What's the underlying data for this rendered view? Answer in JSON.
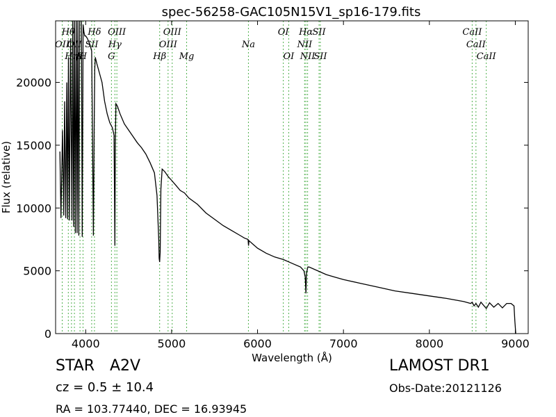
{
  "chart_data": {
    "type": "line",
    "title": "spec-56258-GAC105N15V1_sp16-179.fits",
    "xlabel": "Wavelength (Å)",
    "ylabel": "Flux (relative)",
    "xlim": [
      3650,
      9150
    ],
    "ylim": [
      0,
      24900
    ],
    "xticks": [
      4000,
      5000,
      6000,
      7000,
      8000,
      9000
    ],
    "yticks": [
      0,
      5000,
      10000,
      15000,
      20000
    ],
    "grid": false,
    "series": [
      {
        "x": [
          3700,
          3712,
          3722,
          3730,
          3745,
          3755,
          3768,
          3780,
          3790,
          3800,
          3810,
          3825,
          3840,
          3850,
          3860,
          3870,
          3880,
          3890,
          3900,
          3910,
          3920,
          3930,
          3940,
          3950,
          3960,
          3970,
          3980,
          3990,
          4000,
          4010,
          4020,
          4050,
          4070,
          4090,
          4100,
          4105,
          4112,
          4130,
          4150,
          4170,
          4190,
          4220,
          4250,
          4280,
          4310,
          4330,
          4340,
          4345,
          4352,
          4370,
          4400,
          4450,
          4500,
          4550,
          4600,
          4650,
          4700,
          4750,
          4800,
          4830,
          4850,
          4855,
          4861,
          4867,
          4875,
          4890,
          4920,
          4960,
          5000,
          5050,
          5100,
          5150,
          5200,
          5300,
          5400,
          5500,
          5600,
          5700,
          5800,
          5850,
          5890,
          5895,
          5900,
          5950,
          6000,
          6100,
          6200,
          6300,
          6400,
          6500,
          6540,
          6555,
          6563,
          6570,
          6585,
          6600,
          6700,
          6800,
          6900,
          7000,
          7200,
          7400,
          7600,
          7800,
          8000,
          8200,
          8400,
          8480,
          8498,
          8520,
          8542,
          8570,
          8600,
          8662,
          8700,
          8750,
          8800,
          8850,
          8900,
          8950,
          8985,
          8995,
          9005
        ],
        "y": [
          14500,
          9200,
          13000,
          16200,
          9400,
          18500,
          9200,
          20000,
          9100,
          22000,
          9000,
          23500,
          9000,
          25000,
          8500,
          25000,
          8000,
          25000,
          8000,
          25000,
          7800,
          25000,
          25000,
          25000,
          7700,
          24600,
          24000,
          23700,
          23700,
          23600,
          23500,
          23000,
          22500,
          7800,
          17000,
          21000,
          22000,
          21500,
          21000,
          20500,
          20000,
          18500,
          17500,
          16800,
          16400,
          15800,
          7000,
          15000,
          18300,
          18100,
          17500,
          16700,
          16200,
          15700,
          15200,
          14800,
          14300,
          13600,
          12800,
          11000,
          7500,
          6000,
          5700,
          6500,
          11500,
          13100,
          12900,
          12500,
          12200,
          11800,
          11400,
          11200,
          10800,
          10300,
          9600,
          9100,
          8600,
          8200,
          7800,
          7600,
          7500,
          7000,
          7400,
          7100,
          6800,
          6400,
          6100,
          5900,
          5600,
          5300,
          5000,
          4500,
          3200,
          4800,
          5300,
          5300,
          5000,
          4700,
          4500,
          4300,
          4000,
          3700,
          3400,
          3200,
          3000,
          2800,
          2550,
          2400,
          2500,
          2200,
          2400,
          2100,
          2500,
          2000,
          2450,
          2100,
          2400,
          2050,
          2400,
          2400,
          2200,
          1000,
          0
        ]
      }
    ],
    "lines": [
      {
        "name": "OII",
        "x": 3727,
        "row": "upper"
      },
      {
        "name": "Hθ",
        "x": 3798,
        "row": "upper"
      },
      {
        "name": "Hη",
        "x": 3835,
        "row": "upper"
      },
      {
        "name": "OII",
        "x": 3869,
        "row": "upper"
      },
      {
        "name": "SII",
        "x": 4070,
        "row": "lower"
      },
      {
        "name": "K",
        "x": 3934,
        "row": "lower"
      },
      {
        "name": "H",
        "x": 3969,
        "row": "lower"
      },
      {
        "name": "Hδ",
        "x": 4102,
        "row": "upper"
      },
      {
        "name": "G",
        "x": 4300,
        "row": "lower"
      },
      {
        "name": "Hγ",
        "x": 4340,
        "row": "upper"
      },
      {
        "name": "OIII",
        "x": 4363,
        "row": "upper"
      },
      {
        "name": "Hβ",
        "x": 4861,
        "row": "lower"
      },
      {
        "name": "OIII",
        "x": 4959,
        "row": "lower"
      },
      {
        "name": "OIII",
        "x": 5007,
        "row": "upper"
      },
      {
        "name": "Mg",
        "x": 5175,
        "row": "lower"
      },
      {
        "name": "Na",
        "x": 5894,
        "row": "upper"
      },
      {
        "name": "OI",
        "x": 6300,
        "row": "upper"
      },
      {
        "name": "OI",
        "x": 6363,
        "row": "lower"
      },
      {
        "name": "NII",
        "x": 6548,
        "row": "lower"
      },
      {
        "name": "Hα",
        "x": 6563,
        "row": "upper"
      },
      {
        "name": "NII",
        "x": 6583,
        "row": "lower"
      },
      {
        "name": "SII",
        "x": 6716,
        "row": "upper"
      },
      {
        "name": "SII",
        "x": 6731,
        "row": "lower"
      },
      {
        "name": "CaII",
        "x": 8498,
        "row": "upper"
      },
      {
        "name": "CaII",
        "x": 8542,
        "row": "upper"
      },
      {
        "name": "CaII",
        "x": 8662,
        "row": "lower"
      }
    ],
    "line_label_texts": [
      {
        "text": "OII",
        "x": 3727,
        "level": 2
      },
      {
        "text": "Hθ",
        "x": 3798,
        "level": 1
      },
      {
        "text": "Hη",
        "x": 3835,
        "level": 3
      },
      {
        "text": "OII",
        "x": 3869,
        "level": 2
      },
      {
        "text": "SII",
        "x": 4070,
        "level": 2
      },
      {
        "text": "K",
        "x": 3934,
        "level": 3
      },
      {
        "text": "H",
        "x": 3969,
        "level": 3
      },
      {
        "text": "Hδ",
        "x": 4102,
        "level": 1
      },
      {
        "text": "G",
        "x": 4300,
        "level": 3
      },
      {
        "text": "Hγ",
        "x": 4340,
        "level": 2
      },
      {
        "text": "OIII",
        "x": 4363,
        "level": 1
      },
      {
        "text": "Hβ",
        "x": 4861,
        "level": 3
      },
      {
        "text": "OIII",
        "x": 4959,
        "level": 2
      },
      {
        "text": "OIII",
        "x": 5007,
        "level": 1
      },
      {
        "text": "Mg",
        "x": 5175,
        "level": 3
      },
      {
        "text": "Na",
        "x": 5894,
        "level": 2
      },
      {
        "text": "OI",
        "x": 6300,
        "level": 1
      },
      {
        "text": "OI",
        "x": 6363,
        "level": 3
      },
      {
        "text": "NII",
        "x": 6548,
        "level": 2
      },
      {
        "text": "Hα",
        "x": 6563,
        "level": 1
      },
      {
        "text": "NII",
        "x": 6583,
        "level": 3
      },
      {
        "text": "SII",
        "x": 6716,
        "level": 1
      },
      {
        "text": "SII",
        "x": 6731,
        "level": 3
      },
      {
        "text": "CaII",
        "x": 8498,
        "level": 1
      },
      {
        "text": "CaII",
        "x": 8542,
        "level": 2
      },
      {
        "text": "CaII",
        "x": 8662,
        "level": 3
      }
    ],
    "colors": {
      "spectrum": "#000000",
      "marker": "#4daf4a"
    }
  },
  "info": {
    "object_class": "STAR",
    "subclass": "A2V",
    "redshift": "cz = 0.5 ± 10.4",
    "coords": "RA = 103.77440, DEC = 16.93945",
    "survey": "LAMOST DR1",
    "obs_date": "Obs-Date:20121126"
  }
}
